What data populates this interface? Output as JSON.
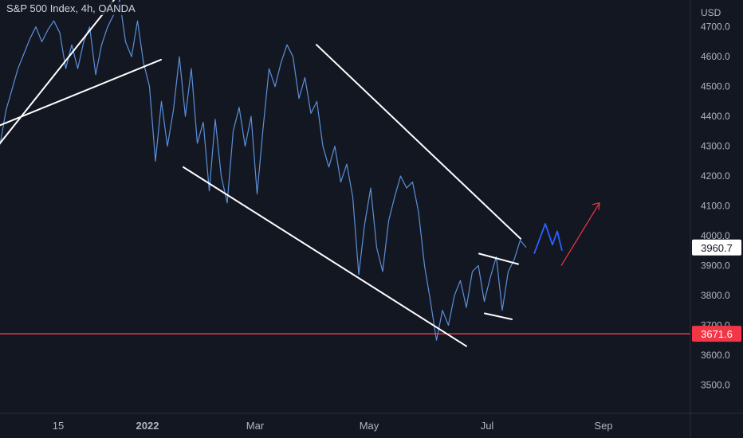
{
  "header": {
    "symbol_label": "S&P 500 Index, 4h, OANDA"
  },
  "axis": {
    "currency": "USD"
  },
  "colors": {
    "background": "#131722",
    "price_line": "#5b8fd9",
    "trend_line": "#ffffff",
    "support_line": "#f23645",
    "projection_blue": "#2962ff",
    "projection_red": "#f23645",
    "text": "#b2b5be"
  },
  "chart_data": {
    "type": "line",
    "title": "S&P 500 Index, 4h, OANDA",
    "ylabel": "USD",
    "ylim": [
      3405,
      4790
    ],
    "y_ticks": [
      3500,
      3600,
      3700,
      3800,
      3900,
      4000,
      4100,
      4200,
      4300,
      4400,
      4500,
      4600,
      4700
    ],
    "x_ticks": [
      "15",
      "2022",
      "Mar",
      "May",
      "Jul",
      "Sep"
    ],
    "grid": false,
    "last_price_label": "3960.7",
    "horizontal_level": {
      "value": 3671.6,
      "label": "3671.6"
    },
    "series": [
      {
        "values": [
          4305,
          4420,
          4490,
          4560,
          4610,
          4660,
          4700,
          4650,
          4690,
          4720,
          4680,
          4560,
          4640,
          4560,
          4650,
          4700,
          4540,
          4640,
          4700,
          4740,
          4790,
          4650,
          4600,
          4720,
          4580,
          4500,
          4250,
          4450,
          4300,
          4420,
          4600,
          4400,
          4560,
          4310,
          4380,
          4150,
          4390,
          4200,
          4110,
          4350,
          4430,
          4300,
          4400,
          4140,
          4360,
          4560,
          4500,
          4580,
          4640,
          4600,
          4460,
          4530,
          4410,
          4450,
          4300,
          4230,
          4300,
          4180,
          4240,
          4130,
          3870,
          4040,
          4160,
          3960,
          3880,
          4050,
          4130,
          4200,
          4160,
          4180,
          4080,
          3900,
          3780,
          3650,
          3750,
          3700,
          3800,
          3850,
          3760,
          3880,
          3900,
          3780,
          3860,
          3930,
          3750,
          3880,
          3920,
          3985,
          3960.7
        ]
      }
    ],
    "drawings": [
      {
        "type": "channel_line",
        "value_start": 4310,
        "value_end": 4800
      },
      {
        "type": "channel_line",
        "value_start": 4370,
        "value_end": 4590
      },
      {
        "type": "wedge_line",
        "value_start": 4230,
        "value_end": 3630
      },
      {
        "type": "wedge_line",
        "value_start": 4640,
        "value_end": 3990
      },
      {
        "type": "flag_line",
        "value_start": 3940,
        "value_end": 3905
      },
      {
        "type": "flag_line",
        "value_start": 3740,
        "value_end": 3720
      },
      {
        "type": "projection_wave",
        "values": [
          3940,
          4040,
          3970,
          4015,
          3950
        ]
      },
      {
        "type": "projection_arrow",
        "value_start": 3900,
        "value_end": 4110
      }
    ]
  }
}
